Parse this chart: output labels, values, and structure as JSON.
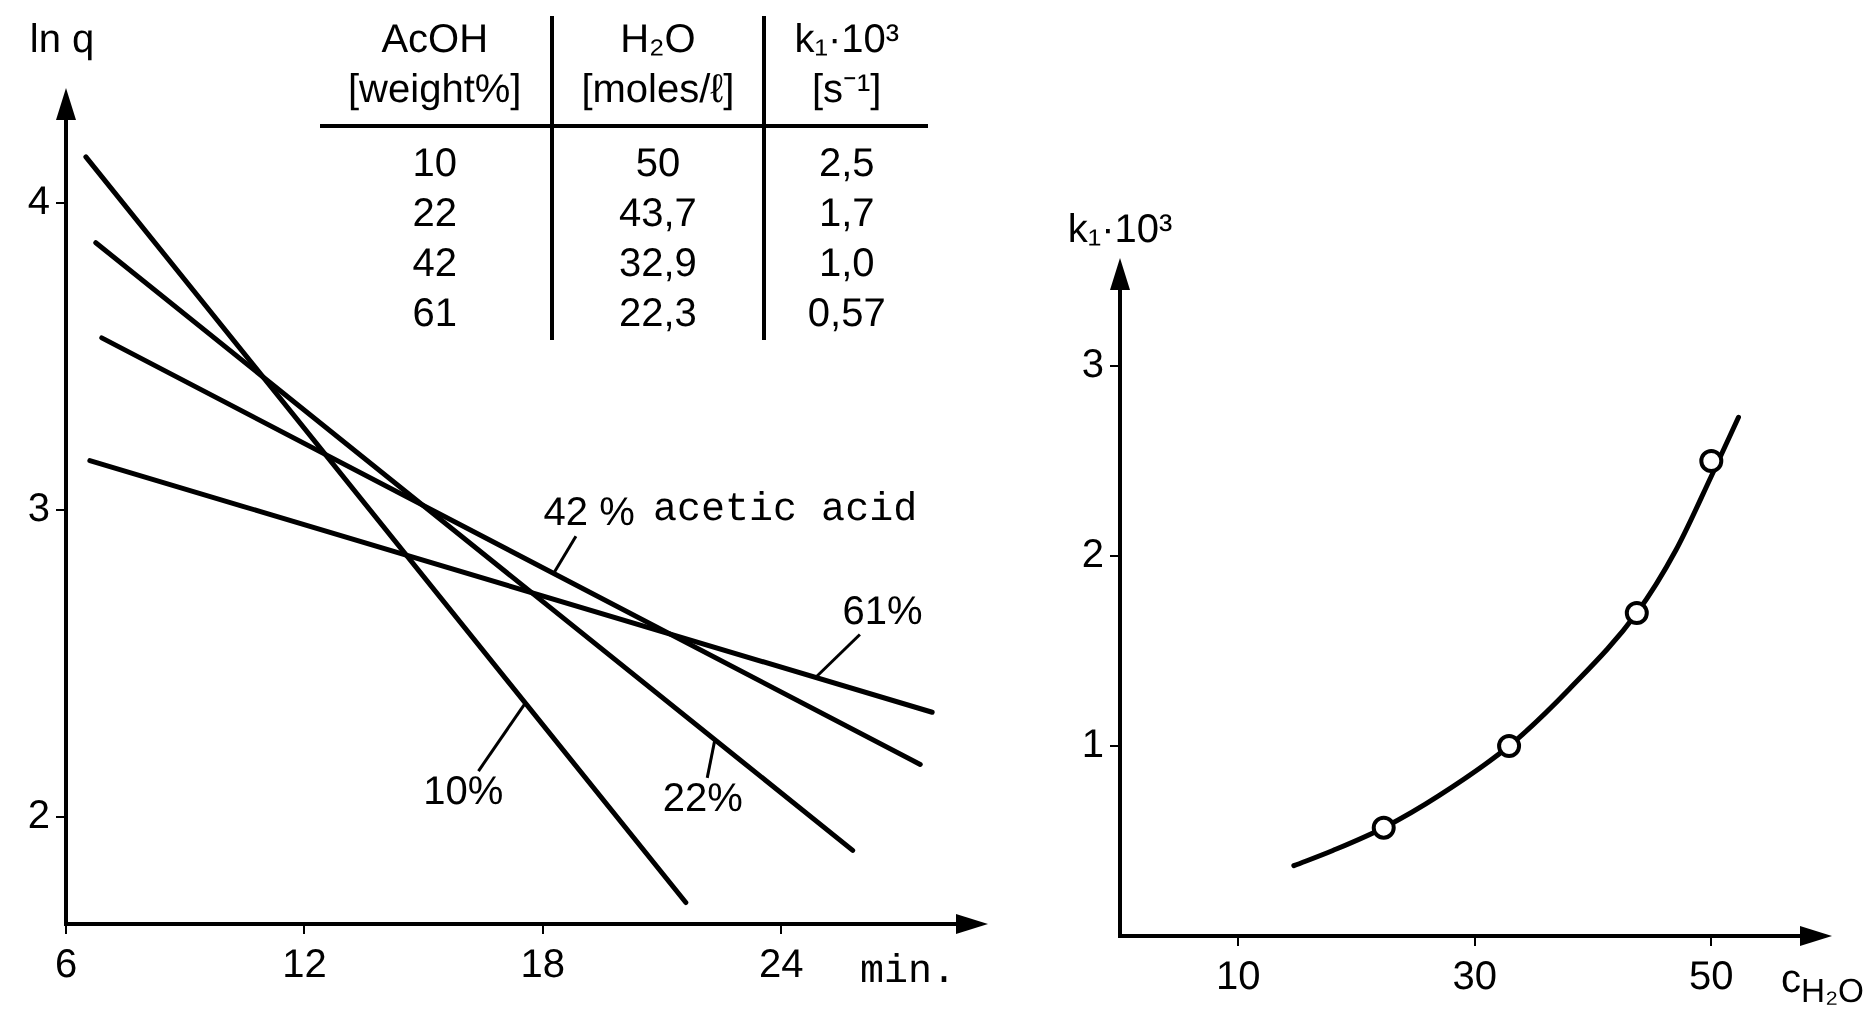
{
  "chart_data": [
    {
      "type": "line",
      "xlabel": "min.",
      "ylabel": "ln q",
      "series": [
        {
          "x": [
            6.5,
            21.6
          ],
          "values": [
            4.15,
            1.72
          ],
          "color": "#000000"
        },
        {
          "x": [
            6.75,
            25.8
          ],
          "values": [
            3.87,
            1.89
          ],
          "color": "#000000"
        },
        {
          "x": [
            6.9,
            27.5
          ],
          "values": [
            3.56,
            2.17
          ],
          "color": "#000000"
        },
        {
          "x": [
            6.6,
            27.8
          ],
          "values": [
            3.16,
            2.34
          ],
          "color": "#000000"
        }
      ],
      "annotations": [
        {
          "text": "10%",
          "x": 17.56,
          "y": 2.37
        },
        {
          "text": "22%",
          "x": 22.33,
          "y": 2.25
        },
        {
          "text": "42 %",
          "x": 18.26,
          "y": 2.79
        },
        "acetic acid",
        {
          "text": "61%",
          "x": 24.84,
          "y": 2.45
        }
      ],
      "xlim": [
        6,
        28.4
      ],
      "ylim": [
        1.65,
        4.27
      ],
      "xticks": [
        6,
        12,
        18,
        24
      ],
      "yticks": [
        2,
        3,
        4
      ],
      "grid": false,
      "legend": false
    },
    {
      "type": "other",
      "xlabel": "AcOH\n[weight%]",
      "categories": [
        "10",
        "22",
        "42",
        "61"
      ],
      "series": [
        {
          "name": "H₂O\n[moles/ℓ]",
          "values": [
            50,
            43.7,
            32.9,
            22.3
          ],
          "value_labels": [
            "50",
            "43,7",
            "32,9",
            "22,3"
          ]
        },
        {
          "name": "k₁·10³\n[s⁻¹]",
          "values": [
            2.5,
            1.7,
            1.0,
            0.57
          ],
          "value_labels": [
            "2,5",
            "1,7",
            "1,0",
            "0,57"
          ]
        }
      ]
    },
    {
      "type": "scatter",
      "xlabel": "c$_{H₂O}$",
      "ylabel": "k₁·10³",
      "series": [
        {
          "type": "line",
          "x": [
            14.7,
            18,
            22.3,
            27,
            32.9,
            38,
            43.7,
            47,
            50,
            52.3
          ],
          "values": [
            0.37,
            0.45,
            0.57,
            0.74,
            1.0,
            1.3,
            1.7,
            2.03,
            2.42,
            2.73
          ],
          "color": "#000000"
        },
        {
          "type": "scatter",
          "x": [
            22.3,
            32.9,
            43.7,
            50
          ],
          "values": [
            0.57,
            1.0,
            1.7,
            2.5
          ],
          "color": "#000000",
          "marker": "circle"
        }
      ],
      "xlim": [
        0,
        57.5
      ],
      "ylim": [
        0,
        3.4
      ],
      "xticks": [
        10,
        30,
        50
      ],
      "yticks": [
        1,
        2,
        3
      ],
      "grid": false,
      "legend": false
    }
  ]
}
